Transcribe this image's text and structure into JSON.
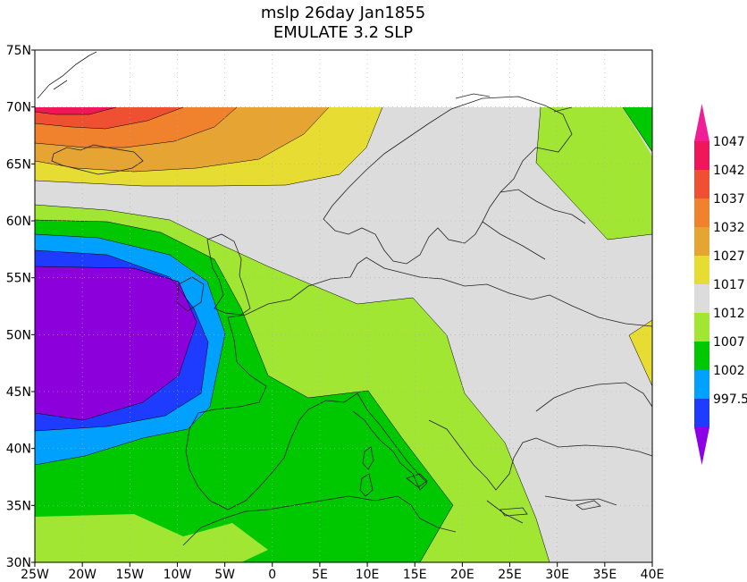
{
  "title": {
    "line1": "mslp 26day Jan1855",
    "line2": "EMULATE 3.2 SLP"
  },
  "map": {
    "lon_range": [
      -25,
      40
    ],
    "lat_range": [
      30,
      75
    ],
    "data_lat_max": 70,
    "lon_ticks": [
      "25W",
      "20W",
      "15W",
      "10W",
      "5W",
      "0",
      "5E",
      "10E",
      "15E",
      "20E",
      "25E",
      "30E",
      "35E",
      "40E"
    ],
    "lat_ticks": [
      "75N",
      "70N",
      "65N",
      "60N",
      "55N",
      "50N",
      "45N",
      "40N",
      "35N",
      "30N"
    ]
  },
  "legend": {
    "labels": [
      "1047",
      "1042",
      "1037",
      "1032",
      "1027",
      "1017",
      "1012",
      "1007",
      "1002",
      "997.5"
    ],
    "colors": [
      "#f0165a",
      "#f05032",
      "#f0822d",
      "#e6a532",
      "#e6dc32",
      "#dcdcdc",
      "#a0e632",
      "#00c800",
      "#00a0ff",
      "#1e3cff"
    ],
    "top_arrow_color": "#f01e96",
    "bottom_arrow_color": "#8c00e6"
  },
  "fill_colors": {
    "c997": "#8c00dc",
    "c1002": "#1e3cff",
    "c1007": "#00a0ff",
    "c1012": "#00c800",
    "c1017": "#a0e632",
    "c1027": "#dcdcdc",
    "c1032": "#e6dc32",
    "c1037": "#e6a532",
    "c1042": "#f0822d",
    "c1047": "#f05032",
    "c1052": "#f0165a"
  }
}
